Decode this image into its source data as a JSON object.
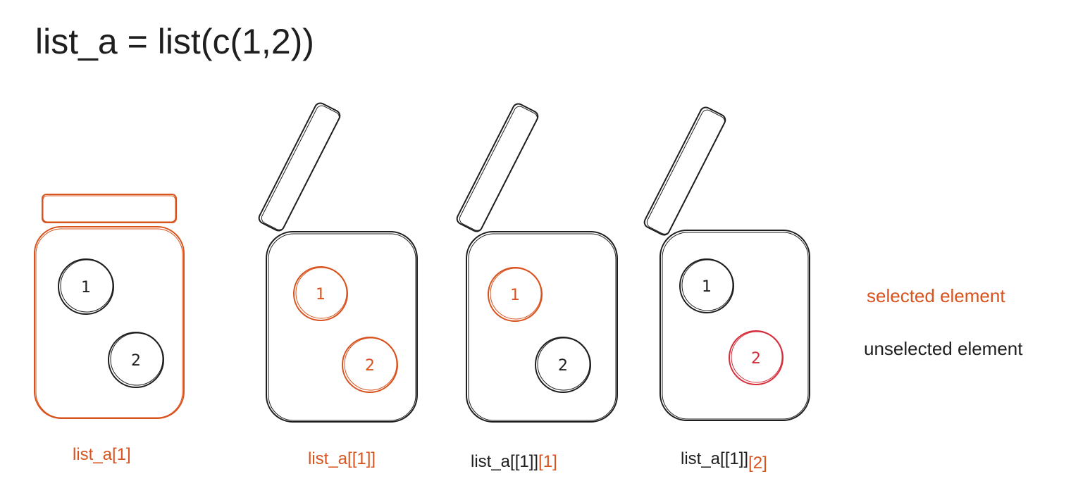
{
  "title": "list_a = list(c(1,2))",
  "colors": {
    "selected": "#d9531e",
    "unselected": "#1e1e1e",
    "selected_red": "#d62d3a"
  },
  "jars": [
    {
      "ball1": "1",
      "ball2": "2",
      "label_parts": [
        "list_a[1]"
      ]
    },
    {
      "ball1": "1",
      "ball2": "2",
      "label_parts": [
        "list_a[[1]]"
      ]
    },
    {
      "ball1": "1",
      "ball2": "2",
      "label_parts": [
        "list_a[[1]]",
        "[1]"
      ]
    },
    {
      "ball1": "1",
      "ball2": "2",
      "label_parts": [
        "list_a[[1]]",
        "[2]"
      ]
    }
  ],
  "legend": {
    "selected": "selected element",
    "unselected": "unselected element"
  }
}
